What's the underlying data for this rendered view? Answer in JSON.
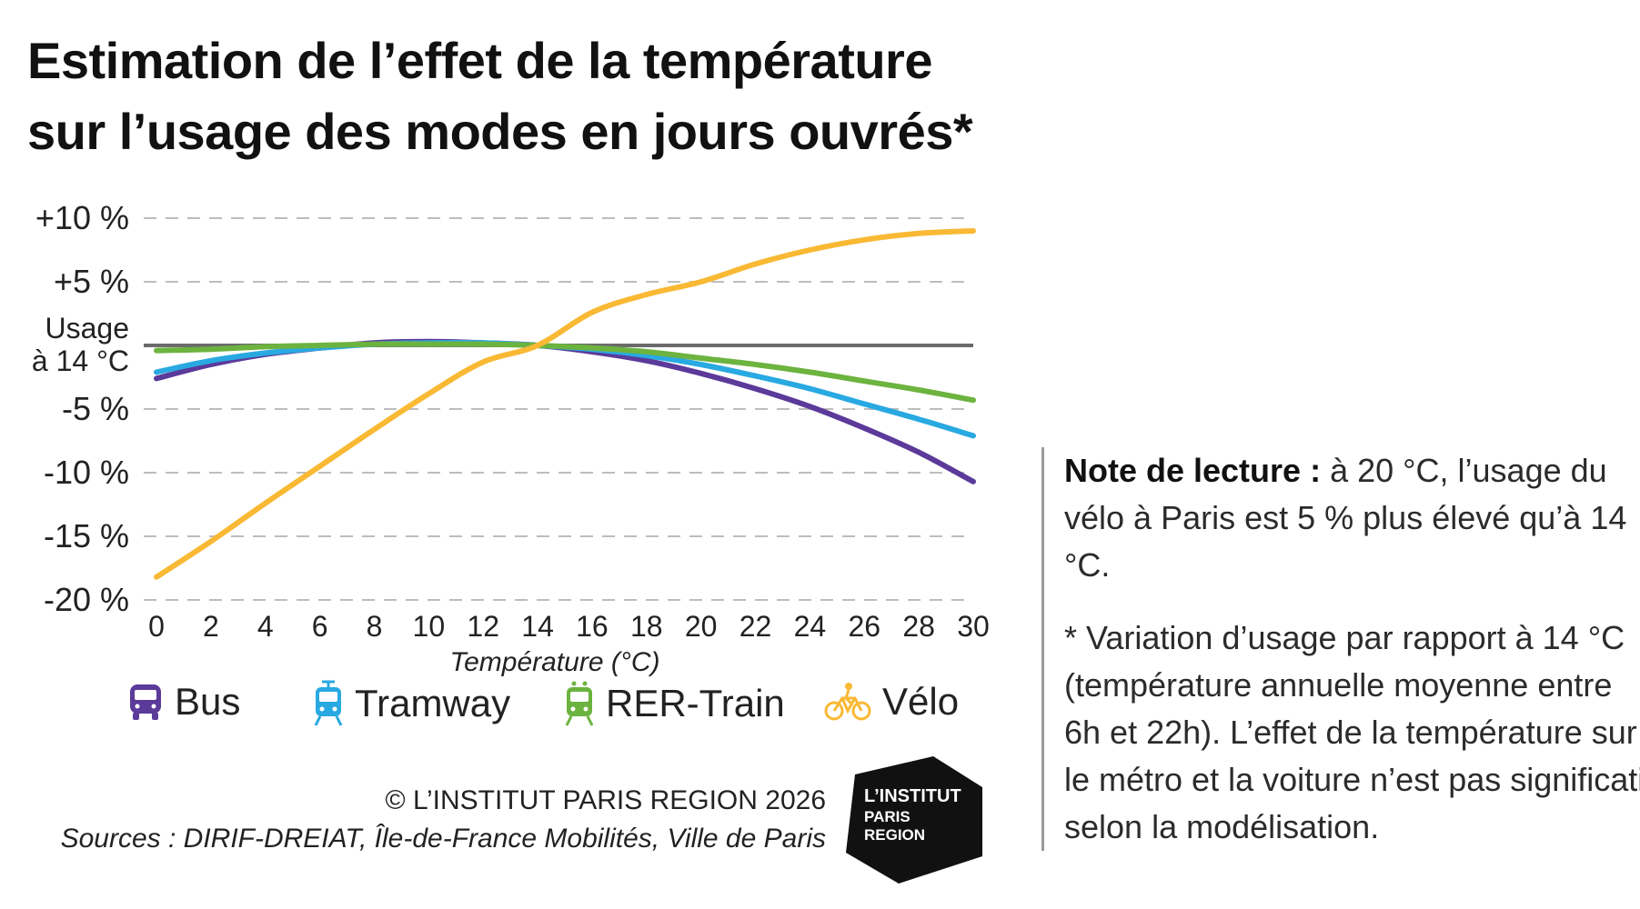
{
  "title": {
    "line1": "Estimation de l’effet de la température",
    "line2": "sur l’usage des modes en jours ouvrés*"
  },
  "chart_data": {
    "type": "line",
    "xlabel": "Température (°C)",
    "ylabel": "",
    "x": [
      0,
      2,
      4,
      6,
      8,
      10,
      12,
      14,
      16,
      18,
      20,
      22,
      24,
      26,
      28,
      30
    ],
    "x_ticks": [
      "0",
      "2",
      "4",
      "6",
      "8",
      "10",
      "12",
      "14",
      "16",
      "18",
      "20",
      "22",
      "24",
      "26",
      "28",
      "30"
    ],
    "xlim": [
      0,
      30
    ],
    "ylim": [
      -20,
      10
    ],
    "y_ticks": [
      {
        "value": 10,
        "label": "+10 %"
      },
      {
        "value": 5,
        "label": "+5 %"
      },
      {
        "value": 0,
        "label": "Usage\nà 14 °C"
      },
      {
        "value": -5,
        "label": "-5 %"
      },
      {
        "value": -10,
        "label": "-10 %"
      },
      {
        "value": -15,
        "label": "-15 %"
      },
      {
        "value": -20,
        "label": "-20 %"
      }
    ],
    "grid": "horizontal dashed",
    "baseline": 0,
    "series": [
      {
        "name": "Bus",
        "color": "#5b3a9a",
        "icon": "bus-icon",
        "values": [
          -2.6,
          -1.5,
          -0.7,
          -0.2,
          0.2,
          0.3,
          0.2,
          0.0,
          -0.5,
          -1.2,
          -2.2,
          -3.4,
          -4.8,
          -6.5,
          -8.4,
          -10.7
        ]
      },
      {
        "name": "Tramway",
        "color": "#29a9e1",
        "icon": "tram-icon",
        "values": [
          -2.1,
          -1.2,
          -0.6,
          -0.2,
          0.1,
          0.2,
          0.2,
          0.0,
          -0.3,
          -0.8,
          -1.5,
          -2.4,
          -3.4,
          -4.6,
          -5.8,
          -7.1
        ]
      },
      {
        "name": "RER-Train",
        "color": "#6cb33f",
        "icon": "train-icon",
        "values": [
          -0.4,
          -0.3,
          -0.1,
          0.0,
          0.1,
          0.1,
          0.1,
          0.0,
          -0.2,
          -0.5,
          -1.0,
          -1.5,
          -2.1,
          -2.8,
          -3.5,
          -4.3
        ]
      },
      {
        "name": "Vélo",
        "color": "#f9b934",
        "icon": "bicycle-icon",
        "values": [
          -18.2,
          -15.4,
          -12.4,
          -9.5,
          -6.6,
          -3.8,
          -1.3,
          0.0,
          2.6,
          4.0,
          5.0,
          6.4,
          7.5,
          8.3,
          8.8,
          9.0
        ]
      }
    ]
  },
  "legend": {
    "items": [
      {
        "label": "Bus",
        "icon": "bus-icon",
        "color": "#5b3a9a"
      },
      {
        "label": "Tramway",
        "icon": "tram-icon",
        "color": "#29a9e1"
      },
      {
        "label": "RER-Train",
        "icon": "train-icon",
        "color": "#6cb33f"
      },
      {
        "label": "Vélo",
        "icon": "bicycle-icon",
        "color": "#f9b934"
      }
    ]
  },
  "credits": {
    "copyright": "© L’INSTITUT PARIS REGION 2026",
    "sources": "Sources : DIRIF-DREIAT, Île-de-France Mobilités, Ville de Paris"
  },
  "logo": {
    "line1": "L’INSTITUT",
    "line2": "PARIS",
    "line3": "REGION"
  },
  "note": {
    "heading": "Note de lecture :",
    "reading_text": " à 20 °C, l’usage du vélo à Paris est 5 % plus élevé qu’à 14 °C.",
    "footnote": "* Variation d’usage par rapport à 14 °C (température annuelle moyenne entre 6h et 22h). L’effet de la température sur le métro et la voiture n’est pas significatif selon la modélisation."
  }
}
